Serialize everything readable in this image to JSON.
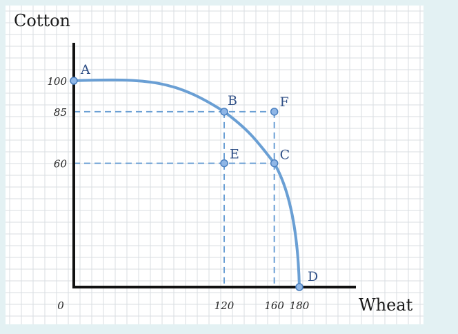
{
  "chart_data": {
    "type": "line",
    "title": "",
    "xlabel": "Wheat",
    "ylabel": "Cotton",
    "xlim": [
      0,
      180
    ],
    "ylim": [
      0,
      100
    ],
    "x_ticks": [
      {
        "value": 0,
        "label": "0"
      },
      {
        "value": 120,
        "label": "120"
      },
      {
        "value": 160,
        "label": "160"
      },
      {
        "value": 180,
        "label": "180"
      }
    ],
    "y_ticks": [
      {
        "value": 100,
        "label": "100"
      },
      {
        "value": 85,
        "label": "85"
      },
      {
        "value": 60,
        "label": "60"
      }
    ],
    "curve": [
      {
        "x": 0,
        "y": 100
      },
      {
        "x": 120,
        "y": 85
      },
      {
        "x": 160,
        "y": 60
      },
      {
        "x": 180,
        "y": 0
      }
    ],
    "points": [
      {
        "label": "A",
        "x": 0,
        "y": 100,
        "on_curve": true
      },
      {
        "label": "B",
        "x": 120,
        "y": 85,
        "on_curve": true
      },
      {
        "label": "C",
        "x": 160,
        "y": 60,
        "on_curve": true
      },
      {
        "label": "D",
        "x": 180,
        "y": 0,
        "on_curve": true
      },
      {
        "label": "E",
        "x": 120,
        "y": 60,
        "on_curve": false
      },
      {
        "label": "F",
        "x": 160,
        "y": 85,
        "on_curve": false
      }
    ],
    "guides": [
      {
        "from": {
          "x": 0,
          "y": 85
        },
        "to": {
          "x": 160,
          "y": 85
        }
      },
      {
        "from": {
          "x": 0,
          "y": 60
        },
        "to": {
          "x": 160,
          "y": 60
        }
      },
      {
        "from": {
          "x": 120,
          "y": 85
        },
        "to": {
          "x": 120,
          "y": 0
        }
      },
      {
        "from": {
          "x": 160,
          "y": 85
        },
        "to": {
          "x": 160,
          "y": 0
        }
      }
    ],
    "grid": true,
    "colors": {
      "curve": "#6a9fd4",
      "point_fill": "#8fb6e6",
      "point_stroke": "#4a7fbf",
      "point_label": "#2f4f86",
      "guide": "#6a9fd4"
    }
  }
}
